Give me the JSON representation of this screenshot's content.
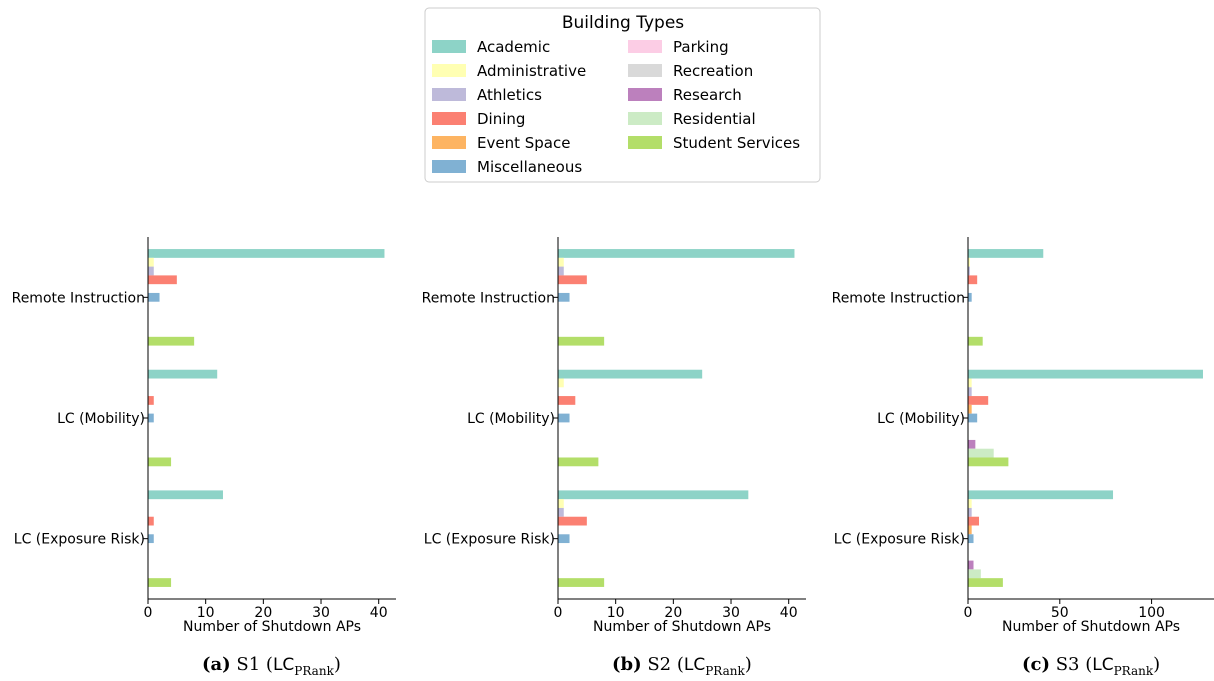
{
  "legend": {
    "title": "Building Types",
    "entries": [
      {
        "name": "Academic",
        "color": "#8dd3c7"
      },
      {
        "name": "Administrative",
        "color": "#ffffb3"
      },
      {
        "name": "Athletics",
        "color": "#bebada"
      },
      {
        "name": "Dining",
        "color": "#fb8072"
      },
      {
        "name": "Event Space",
        "color": "#fdb462"
      },
      {
        "name": "Miscellaneous",
        "color": "#80b1d3"
      },
      {
        "name": "Parking",
        "color": "#fccde5"
      },
      {
        "name": "Recreation",
        "color": "#d9d9d9"
      },
      {
        "name": "Research",
        "color": "#bc80bd"
      },
      {
        "name": "Residential",
        "color": "#ccebc5"
      },
      {
        "name": "Student Services",
        "color": "#b3de69"
      }
    ]
  },
  "chart_data": [
    {
      "type": "bar",
      "orientation": "horizontal",
      "caption": {
        "label": "(a)",
        "scenario": "S1",
        "method": "LC",
        "method_sub": "PRank"
      },
      "xlabel": "Number of Shutdown APs",
      "xlim": [
        0,
        43
      ],
      "xticks": [
        0,
        10,
        20,
        30,
        40
      ],
      "categories": [
        "Remote Instruction",
        "LC (Mobility)",
        "LC (Exposure Risk)"
      ],
      "series": [
        {
          "name": "Academic",
          "values": [
            41,
            12,
            13
          ]
        },
        {
          "name": "Administrative",
          "values": [
            1,
            0,
            0
          ]
        },
        {
          "name": "Athletics",
          "values": [
            1,
            0,
            0
          ]
        },
        {
          "name": "Dining",
          "values": [
            5,
            1,
            1
          ]
        },
        {
          "name": "Event Space",
          "values": [
            0,
            0,
            0
          ]
        },
        {
          "name": "Miscellaneous",
          "values": [
            2,
            1,
            1
          ]
        },
        {
          "name": "Parking",
          "values": [
            0,
            0,
            0
          ]
        },
        {
          "name": "Recreation",
          "values": [
            0,
            0,
            0
          ]
        },
        {
          "name": "Research",
          "values": [
            0,
            0,
            0
          ]
        },
        {
          "name": "Residential",
          "values": [
            0,
            0,
            0
          ]
        },
        {
          "name": "Student Services",
          "values": [
            8,
            4,
            4
          ]
        }
      ]
    },
    {
      "type": "bar",
      "orientation": "horizontal",
      "caption": {
        "label": "(b)",
        "scenario": "S2",
        "method": "LC",
        "method_sub": "PRank"
      },
      "xlabel": "Number of Shutdown APs",
      "xlim": [
        0,
        43
      ],
      "xticks": [
        0,
        10,
        20,
        30,
        40
      ],
      "categories": [
        "Remote Instruction",
        "LC (Mobility)",
        "LC (Exposure Risk)"
      ],
      "series": [
        {
          "name": "Academic",
          "values": [
            41,
            25,
            33
          ]
        },
        {
          "name": "Administrative",
          "values": [
            1,
            1,
            1
          ]
        },
        {
          "name": "Athletics",
          "values": [
            1,
            0,
            1
          ]
        },
        {
          "name": "Dining",
          "values": [
            5,
            3,
            5
          ]
        },
        {
          "name": "Event Space",
          "values": [
            0,
            0,
            0
          ]
        },
        {
          "name": "Miscellaneous",
          "values": [
            2,
            2,
            2
          ]
        },
        {
          "name": "Parking",
          "values": [
            0,
            0,
            0
          ]
        },
        {
          "name": "Recreation",
          "values": [
            0,
            0,
            0
          ]
        },
        {
          "name": "Research",
          "values": [
            0,
            0,
            0
          ]
        },
        {
          "name": "Residential",
          "values": [
            0,
            0,
            0
          ]
        },
        {
          "name": "Student Services",
          "values": [
            8,
            7,
            8
          ]
        }
      ]
    },
    {
      "type": "bar",
      "orientation": "horizontal",
      "caption": {
        "label": "(c)",
        "scenario": "S3",
        "method": "LC",
        "method_sub": "PRank"
      },
      "xlabel": "Number of Shutdown APs",
      "xlim": [
        0,
        134
      ],
      "xticks": [
        0,
        50,
        100
      ],
      "categories": [
        "Remote Instruction",
        "LC (Mobility)",
        "LC (Exposure Risk)"
      ],
      "series": [
        {
          "name": "Academic",
          "values": [
            41,
            128,
            79
          ]
        },
        {
          "name": "Administrative",
          "values": [
            1,
            2,
            2
          ]
        },
        {
          "name": "Athletics",
          "values": [
            1,
            2,
            2
          ]
        },
        {
          "name": "Dining",
          "values": [
            5,
            11,
            6
          ]
        },
        {
          "name": "Event Space",
          "values": [
            0,
            2,
            2
          ]
        },
        {
          "name": "Miscellaneous",
          "values": [
            2,
            5,
            3
          ]
        },
        {
          "name": "Parking",
          "values": [
            0,
            0,
            0
          ]
        },
        {
          "name": "Recreation",
          "values": [
            0,
            0,
            0
          ]
        },
        {
          "name": "Research",
          "values": [
            0,
            4,
            3
          ]
        },
        {
          "name": "Residential",
          "values": [
            0,
            14,
            7
          ]
        },
        {
          "name": "Student Services",
          "values": [
            8,
            22,
            19
          ]
        }
      ]
    }
  ]
}
